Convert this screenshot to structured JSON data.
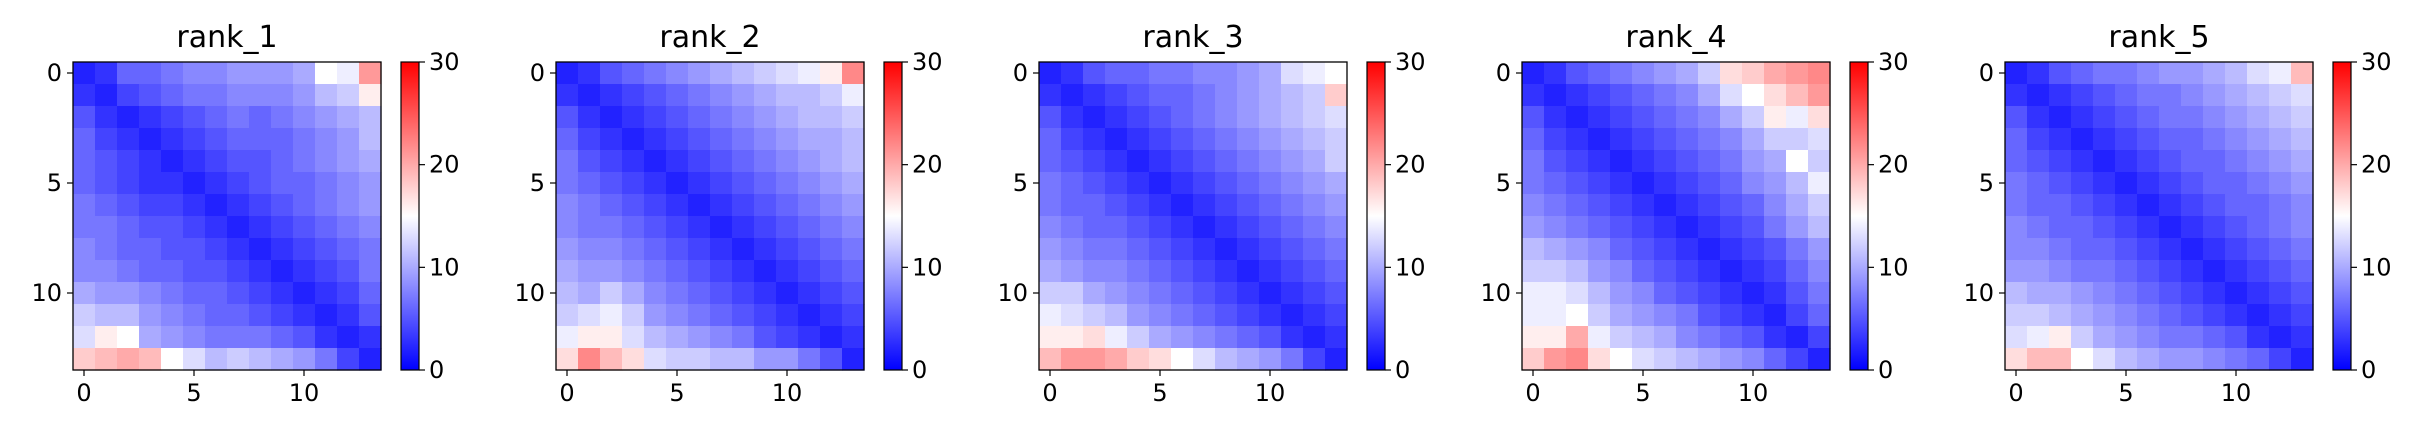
{
  "chart_data": [
    {
      "type": "heatmap",
      "title": "rank_1",
      "vmin": 0,
      "vmax": 30,
      "colormap": "bwr",
      "xticks": [
        0,
        5,
        10
      ],
      "yticks": [
        0,
        5,
        10
      ],
      "cbar_ticks": [
        0,
        10,
        20,
        30
      ],
      "values": [
        [
          2,
          3,
          6,
          6,
          7,
          8,
          8,
          9,
          9,
          9,
          10,
          15,
          14,
          21
        ],
        [
          3,
          2,
          4,
          5,
          6,
          7,
          7,
          8,
          8,
          8,
          9,
          11,
          12,
          16
        ],
        [
          5,
          3,
          2,
          3,
          4,
          5,
          6,
          7,
          6,
          7,
          8,
          9,
          10,
          11
        ],
        [
          6,
          4,
          3,
          2,
          3,
          4,
          5,
          6,
          6,
          6,
          7,
          8,
          9,
          11
        ],
        [
          6,
          5,
          4,
          3,
          2,
          3,
          4,
          5,
          5,
          6,
          7,
          8,
          9,
          10
        ],
        [
          6,
          5,
          4,
          3,
          3,
          2,
          3,
          4,
          5,
          6,
          6,
          7,
          8,
          9
        ],
        [
          7,
          6,
          5,
          4,
          4,
          3,
          2,
          3,
          4,
          5,
          6,
          7,
          8,
          9
        ],
        [
          7,
          7,
          6,
          5,
          5,
          4,
          3,
          2,
          3,
          4,
          5,
          6,
          7,
          8
        ],
        [
          8,
          7,
          6,
          6,
          5,
          5,
          4,
          3,
          2,
          3,
          4,
          5,
          6,
          7
        ],
        [
          8,
          8,
          7,
          6,
          6,
          5,
          5,
          4,
          3,
          2,
          3,
          4,
          5,
          7
        ],
        [
          10,
          9,
          9,
          8,
          7,
          6,
          6,
          5,
          4,
          3,
          2,
          3,
          4,
          6
        ],
        [
          12,
          11,
          11,
          9,
          8,
          7,
          6,
          6,
          5,
          4,
          3,
          2,
          3,
          5
        ],
        [
          13,
          16,
          15,
          10,
          9,
          8,
          7,
          7,
          7,
          6,
          5,
          3,
          2,
          3
        ],
        [
          18,
          19,
          20,
          19,
          15,
          13,
          11,
          12,
          11,
          10,
          9,
          7,
          4,
          2
        ]
      ]
    },
    {
      "type": "heatmap",
      "title": "rank_2",
      "vmin": 0,
      "vmax": 30,
      "colormap": "bwr",
      "xticks": [
        0,
        5,
        10
      ],
      "yticks": [
        0,
        5,
        10
      ],
      "cbar_ticks": [
        0,
        10,
        20,
        30
      ],
      "values": [
        [
          2,
          3,
          5,
          6,
          7,
          8,
          9,
          10,
          11,
          12,
          13,
          14,
          16,
          22
        ],
        [
          3,
          2,
          3,
          4,
          5,
          6,
          7,
          8,
          9,
          10,
          11,
          11,
          12,
          14
        ],
        [
          5,
          3,
          2,
          3,
          4,
          5,
          6,
          7,
          8,
          9,
          10,
          11,
          11,
          12
        ],
        [
          6,
          4,
          3,
          2,
          3,
          4,
          5,
          6,
          7,
          8,
          9,
          10,
          10,
          11
        ],
        [
          7,
          5,
          4,
          3,
          2,
          3,
          4,
          5,
          6,
          7,
          8,
          9,
          10,
          11
        ],
        [
          7,
          6,
          5,
          4,
          3,
          2,
          3,
          4,
          5,
          6,
          7,
          8,
          9,
          10
        ],
        [
          8,
          7,
          6,
          5,
          4,
          3,
          2,
          3,
          4,
          5,
          6,
          7,
          8,
          9
        ],
        [
          8,
          7,
          7,
          6,
          5,
          4,
          3,
          2,
          3,
          4,
          5,
          6,
          7,
          8
        ],
        [
          9,
          8,
          8,
          7,
          6,
          5,
          4,
          3,
          2,
          3,
          4,
          5,
          6,
          7
        ],
        [
          10,
          9,
          9,
          8,
          7,
          6,
          5,
          4,
          3,
          2,
          3,
          4,
          5,
          6
        ],
        [
          11,
          10,
          12,
          10,
          8,
          7,
          6,
          5,
          4,
          3,
          2,
          3,
          4,
          5
        ],
        [
          12,
          13,
          14,
          12,
          9,
          8,
          7,
          6,
          5,
          4,
          3,
          2,
          3,
          4
        ],
        [
          14,
          16,
          16,
          13,
          11,
          10,
          9,
          8,
          7,
          5,
          4,
          3,
          2,
          3
        ],
        [
          17,
          22,
          19,
          17,
          13,
          12,
          12,
          11,
          11,
          9,
          9,
          7,
          5,
          2
        ]
      ]
    },
    {
      "type": "heatmap",
      "title": "rank_3",
      "vmin": 0,
      "vmax": 30,
      "colormap": "bwr",
      "xticks": [
        0,
        5,
        10
      ],
      "yticks": [
        0,
        5,
        10
      ],
      "cbar_ticks": [
        0,
        10,
        20,
        30
      ],
      "values": [
        [
          2,
          3,
          5,
          6,
          6,
          7,
          7,
          8,
          8,
          9,
          10,
          13,
          14,
          15
        ],
        [
          3,
          2,
          3,
          4,
          5,
          6,
          6,
          7,
          8,
          9,
          10,
          11,
          12,
          18
        ],
        [
          5,
          3,
          2,
          3,
          4,
          5,
          6,
          7,
          8,
          9,
          10,
          11,
          12,
          13
        ],
        [
          6,
          4,
          3,
          2,
          3,
          4,
          5,
          6,
          7,
          8,
          9,
          10,
          11,
          12
        ],
        [
          6,
          5,
          4,
          3,
          2,
          3,
          4,
          5,
          6,
          7,
          8,
          9,
          10,
          12
        ],
        [
          7,
          6,
          5,
          4,
          3,
          2,
          3,
          4,
          5,
          6,
          7,
          8,
          9,
          10
        ],
        [
          7,
          6,
          6,
          5,
          4,
          3,
          2,
          3,
          4,
          5,
          6,
          7,
          8,
          9
        ],
        [
          8,
          7,
          6,
          6,
          5,
          4,
          3,
          2,
          3,
          4,
          5,
          6,
          7,
          8
        ],
        [
          9,
          8,
          7,
          7,
          6,
          5,
          4,
          3,
          2,
          3,
          4,
          5,
          6,
          7
        ],
        [
          10,
          9,
          8,
          8,
          7,
          6,
          5,
          4,
          3,
          2,
          3,
          4,
          5,
          6
        ],
        [
          12,
          12,
          10,
          9,
          8,
          7,
          6,
          5,
          4,
          3,
          2,
          3,
          4,
          5
        ],
        [
          14,
          13,
          12,
          11,
          9,
          8,
          7,
          6,
          5,
          4,
          3,
          2,
          3,
          4
        ],
        [
          16,
          16,
          17,
          14,
          12,
          10,
          9,
          8,
          7,
          6,
          5,
          3,
          2,
          3
        ],
        [
          19,
          21,
          21,
          20,
          18,
          17,
          15,
          13,
          11,
          10,
          9,
          7,
          4,
          2
        ]
      ]
    },
    {
      "type": "heatmap",
      "title": "rank_4",
      "vmin": 0,
      "vmax": 30,
      "colormap": "bwr",
      "xticks": [
        0,
        5,
        10
      ],
      "yticks": [
        0,
        5,
        10
      ],
      "cbar_ticks": [
        0,
        10,
        20,
        30
      ],
      "values": [
        [
          2,
          3,
          5,
          6,
          7,
          8,
          9,
          10,
          12,
          17,
          18,
          20,
          21,
          22
        ],
        [
          3,
          2,
          3,
          4,
          5,
          6,
          7,
          8,
          10,
          13,
          15,
          17,
          19,
          21
        ],
        [
          5,
          3,
          2,
          3,
          4,
          5,
          6,
          7,
          8,
          10,
          12,
          16,
          14,
          17
        ],
        [
          6,
          4,
          3,
          2,
          3,
          4,
          5,
          6,
          7,
          8,
          10,
          12,
          12,
          13
        ],
        [
          7,
          5,
          4,
          3,
          2,
          3,
          4,
          5,
          6,
          7,
          9,
          10,
          15,
          12
        ],
        [
          7,
          6,
          5,
          4,
          3,
          2,
          3,
          4,
          5,
          6,
          8,
          9,
          11,
          14
        ],
        [
          8,
          7,
          6,
          5,
          4,
          3,
          2,
          3,
          4,
          5,
          6,
          8,
          10,
          12
        ],
        [
          9,
          8,
          7,
          6,
          5,
          4,
          3,
          2,
          3,
          4,
          5,
          7,
          9,
          11
        ],
        [
          11,
          10,
          9,
          8,
          6,
          5,
          4,
          3,
          2,
          3,
          4,
          5,
          7,
          9
        ],
        [
          12,
          12,
          11,
          9,
          8,
          6,
          5,
          4,
          3,
          2,
          3,
          4,
          6,
          8
        ],
        [
          14,
          14,
          13,
          11,
          9,
          8,
          6,
          5,
          4,
          3,
          2,
          3,
          5,
          7
        ],
        [
          14,
          14,
          15,
          12,
          10,
          9,
          8,
          7,
          5,
          4,
          3,
          2,
          4,
          6
        ],
        [
          16,
          16,
          20,
          14,
          12,
          11,
          10,
          8,
          7,
          6,
          5,
          3,
          2,
          4
        ],
        [
          18,
          21,
          22,
          17,
          15,
          13,
          12,
          11,
          10,
          9,
          8,
          6,
          4,
          2
        ]
      ]
    },
    {
      "type": "heatmap",
      "title": "rank_5",
      "vmin": 0,
      "vmax": 30,
      "colormap": "bwr",
      "xticks": [
        0,
        5,
        10
      ],
      "yticks": [
        0,
        5,
        10
      ],
      "cbar_ticks": [
        0,
        10,
        20,
        30
      ],
      "values": [
        [
          2,
          3,
          5,
          6,
          7,
          7,
          8,
          9,
          9,
          10,
          11,
          13,
          14,
          19
        ],
        [
          3,
          2,
          3,
          4,
          5,
          6,
          7,
          7,
          8,
          9,
          10,
          11,
          12,
          13
        ],
        [
          5,
          3,
          2,
          3,
          4,
          5,
          6,
          7,
          7,
          8,
          9,
          10,
          11,
          12
        ],
        [
          6,
          4,
          3,
          2,
          3,
          4,
          5,
          6,
          6,
          7,
          8,
          9,
          10,
          11
        ],
        [
          6,
          5,
          4,
          3,
          2,
          3,
          4,
          5,
          6,
          6,
          7,
          8,
          9,
          10
        ],
        [
          7,
          6,
          5,
          4,
          3,
          2,
          3,
          4,
          5,
          6,
          6,
          7,
          8,
          9
        ],
        [
          7,
          6,
          6,
          5,
          4,
          3,
          2,
          3,
          4,
          5,
          6,
          6,
          7,
          8
        ],
        [
          8,
          7,
          6,
          6,
          5,
          4,
          3,
          2,
          3,
          4,
          5,
          6,
          7,
          8
        ],
        [
          8,
          8,
          7,
          6,
          6,
          5,
          4,
          3,
          2,
          3,
          4,
          5,
          6,
          7
        ],
        [
          9,
          9,
          8,
          7,
          7,
          6,
          5,
          4,
          3,
          2,
          3,
          4,
          5,
          6
        ],
        [
          11,
          10,
          10,
          9,
          8,
          7,
          6,
          5,
          4,
          3,
          2,
          3,
          4,
          5
        ],
        [
          12,
          12,
          11,
          10,
          9,
          8,
          7,
          6,
          5,
          4,
          3,
          2,
          3,
          4
        ],
        [
          13,
          14,
          16,
          12,
          10,
          9,
          8,
          7,
          7,
          6,
          5,
          3,
          2,
          3
        ],
        [
          17,
          19,
          19,
          15,
          13,
          11,
          10,
          9,
          9,
          8,
          7,
          6,
          4,
          2
        ]
      ]
    }
  ]
}
